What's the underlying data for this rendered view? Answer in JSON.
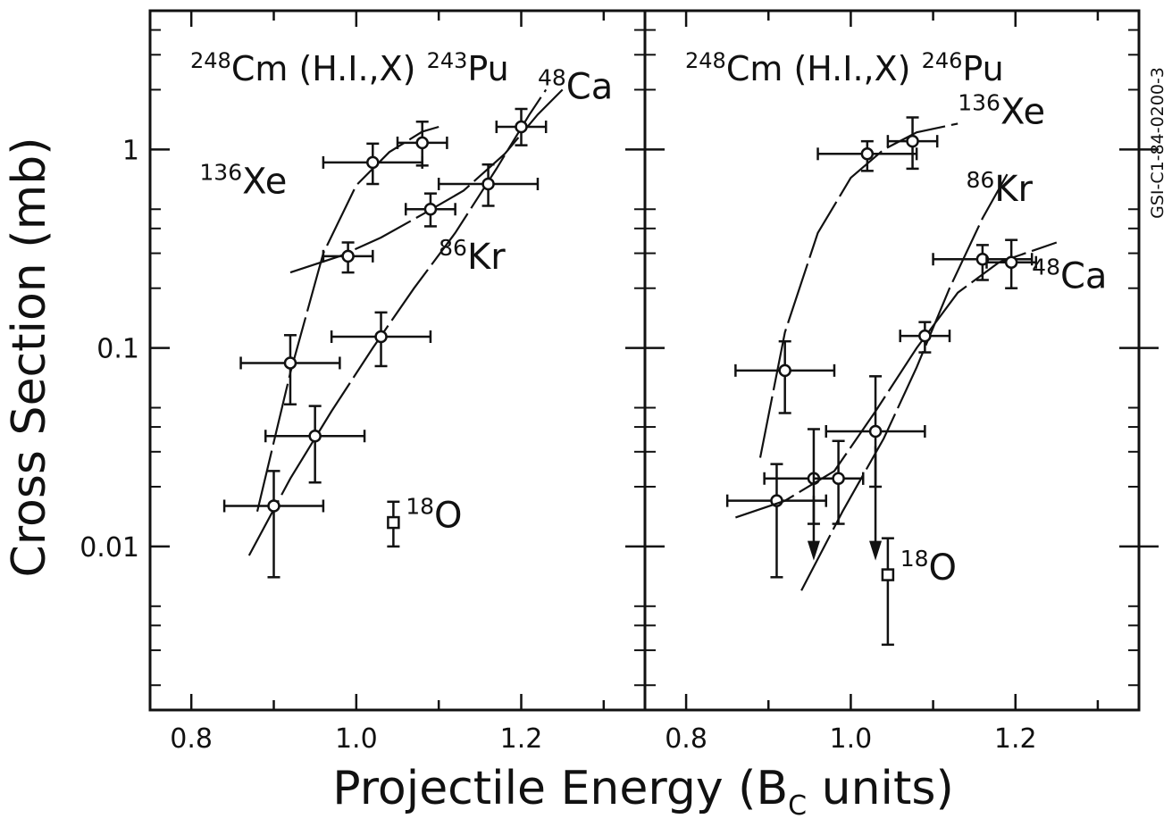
{
  "figure": {
    "ylabel": "Cross Section (mb)",
    "xlabel_main": "Projectile  Energy  (B",
    "xlabel_sub": "C",
    "xlabel_tail": " units)",
    "side_id": "GSI-C1-84-0200-3"
  },
  "chart_data": [
    {
      "type": "scatter",
      "title_parts": {
        "a_mass": "248",
        "a_sym": "Cm",
        "reaction": " (H.I.,X) ",
        "b_mass": "243",
        "b_sym": "Pu"
      },
      "xlabel": "Projectile Energy (B_C units)",
      "ylabel": "Cross Section (mb)",
      "xlim": [
        0.75,
        1.35
      ],
      "ylim": [
        0.0015,
        5
      ],
      "yscale": "log",
      "xticks": [
        "0.8",
        "1.0",
        "1.2"
      ],
      "yticks": [
        "0.01",
        "0.1",
        "1"
      ],
      "series": [
        {
          "name_mass": "136",
          "name_sym": "Xe",
          "label_x": 0.81,
          "label_y": 0.6,
          "points": [
            {
              "x": 0.92,
              "y": 0.084,
              "xerr": [
                0.06,
                0.06
              ],
              "yerr": [
                0.032,
                0.032
              ]
            },
            {
              "x": 1.02,
              "y": 0.86,
              "xerr": [
                0.06,
                0.06
              ],
              "yerr": [
                0.19,
                0.21
              ]
            },
            {
              "x": 1.08,
              "y": 1.08,
              "xerr": [
                0.03,
                0.03
              ],
              "yerr": [
                0.25,
                0.3
              ]
            }
          ],
          "curve": [
            [
              0.88,
              0.015
            ],
            [
              0.92,
              0.075
            ],
            [
              0.96,
              0.3
            ],
            [
              1.0,
              0.66
            ],
            [
              1.04,
              0.97
            ],
            [
              1.08,
              1.23
            ],
            [
              1.1,
              1.3
            ]
          ]
        },
        {
          "name_mass": "86",
          "name_sym": "Kr",
          "label_x": 1.1,
          "label_y": 0.25,
          "points": [
            {
              "x": 0.9,
              "y": 0.016,
              "xerr": [
                0.06,
                0.06
              ],
              "yerr": [
                0.009,
                0.008
              ]
            },
            {
              "x": 0.95,
              "y": 0.036,
              "xerr": [
                0.06,
                0.06
              ],
              "yerr": [
                0.015,
                0.015
              ]
            },
            {
              "x": 1.03,
              "y": 0.114,
              "xerr": [
                0.06,
                0.06
              ],
              "yerr": [
                0.033,
                0.037
              ]
            },
            {
              "x": 1.16,
              "y": 0.67,
              "xerr": [
                0.06,
                0.06
              ],
              "yerr": [
                0.15,
                0.17
              ]
            }
          ],
          "curve": [
            [
              0.87,
              0.009
            ],
            [
              0.92,
              0.022
            ],
            [
              0.97,
              0.048
            ],
            [
              1.02,
              0.1
            ],
            [
              1.07,
              0.2
            ],
            [
              1.12,
              0.38
            ],
            [
              1.17,
              0.8
            ],
            [
              1.21,
              1.5
            ],
            [
              1.23,
              2.0
            ]
          ]
        },
        {
          "name_mass": "48",
          "name_sym": "Ca",
          "label_x": 1.22,
          "label_y": 1.8,
          "points": [
            {
              "x": 0.99,
              "y": 0.29,
              "xerr": [
                0.03,
                0.03
              ],
              "yerr": [
                0.05,
                0.05
              ]
            },
            {
              "x": 1.09,
              "y": 0.5,
              "xerr": [
                0.03,
                0.03
              ],
              "yerr": [
                0.09,
                0.1
              ]
            },
            {
              "x": 1.2,
              "y": 1.3,
              "xerr": [
                0.03,
                0.03
              ],
              "yerr": [
                0.25,
                0.3
              ]
            }
          ],
          "curve": [
            [
              0.92,
              0.24
            ],
            [
              0.98,
              0.29
            ],
            [
              1.03,
              0.36
            ],
            [
              1.08,
              0.47
            ],
            [
              1.13,
              0.62
            ],
            [
              1.18,
              0.95
            ],
            [
              1.22,
              1.5
            ],
            [
              1.25,
              2.0
            ]
          ]
        },
        {
          "name_mass": "18",
          "name_sym": "O",
          "label_x": 1.06,
          "label_y": 0.0125,
          "points": [
            {
              "x": 1.045,
              "y": 0.0132,
              "xerr": [
                0.0,
                0.0
              ],
              "yerr": [
                0.0032,
                0.0036
              ],
              "marker": "square"
            }
          ],
          "curve": []
        }
      ]
    },
    {
      "type": "scatter",
      "title_parts": {
        "a_mass": "248",
        "a_sym": "Cm",
        "reaction": " (H.I.,X) ",
        "b_mass": "246",
        "b_sym": "Pu"
      },
      "xlabel": "Projectile Energy (B_C units)",
      "ylabel": "Cross Section (mb)",
      "xlim": [
        0.75,
        1.35
      ],
      "ylim": [
        0.0015,
        5
      ],
      "yscale": "log",
      "xticks": [
        "0.8",
        "1.0",
        "1.2"
      ],
      "yticks": [
        "0.01",
        "0.1",
        "1"
      ],
      "series": [
        {
          "name_mass": "136",
          "name_sym": "Xe",
          "label_x": 1.13,
          "label_y": 1.35,
          "points": [
            {
              "x": 0.92,
              "y": 0.077,
              "xerr": [
                0.06,
                0.06
              ],
              "yerr": [
                0.03,
                0.031
              ]
            },
            {
              "x": 1.02,
              "y": 0.95,
              "xerr": [
                0.06,
                0.06
              ],
              "yerr": [
                0.17,
                0.15
              ]
            },
            {
              "x": 1.075,
              "y": 1.1,
              "xerr": [
                0.03,
                0.03
              ],
              "yerr": [
                0.3,
                0.35
              ]
            }
          ],
          "curve": [
            [
              0.89,
              0.028
            ],
            [
              0.92,
              0.12
            ],
            [
              0.96,
              0.38
            ],
            [
              1.0,
              0.72
            ],
            [
              1.04,
              1.0
            ],
            [
              1.08,
              1.22
            ],
            [
              1.13,
              1.35
            ]
          ]
        },
        {
          "name_mass": "86",
          "name_sym": "Kr",
          "label_x": 1.14,
          "label_y": 0.55,
          "points": [
            {
              "x": 0.91,
              "y": 0.017,
              "xerr": [
                0.06,
                0.06
              ],
              "yerr": [
                0.01,
                0.009
              ]
            },
            {
              "x": 0.955,
              "y": 0.022,
              "xerr": [
                0.06,
                0.06
              ],
              "yerr": [
                0.009,
                0.017
              ]
            },
            {
              "x": 0.985,
              "y": 0.022,
              "xerr": [
                0.03,
                0.03
              ],
              "yerr": [
                0.009,
                0.012
              ]
            },
            {
              "x": 1.03,
              "y": 0.038,
              "xerr": [
                0.06,
                0.06
              ],
              "yerr": [
                0.018,
                0.034
              ]
            },
            {
              "x": 1.16,
              "y": 0.28,
              "xerr": [
                0.06,
                0.06
              ],
              "yerr": [
                0.06,
                0.05
              ]
            }
          ],
          "curve": [
            [
              0.94,
              0.006
            ],
            [
              0.99,
              0.015
            ],
            [
              1.04,
              0.035
            ],
            [
              1.08,
              0.08
            ],
            [
              1.12,
              0.2
            ],
            [
              1.16,
              0.45
            ],
            [
              1.19,
              0.75
            ]
          ]
        },
        {
          "name_mass": "48",
          "name_sym": "Ca",
          "label_x": 1.22,
          "label_y": 0.2,
          "points": [
            {
              "x": 1.09,
              "y": 0.115,
              "xerr": [
                0.03,
                0.03
              ],
              "yerr": [
                0.02,
                0.02
              ]
            },
            {
              "x": 1.195,
              "y": 0.27,
              "xerr": [
                0.03,
                0.03
              ],
              "yerr": [
                0.07,
                0.08
              ]
            }
          ],
          "curve": [
            [
              0.86,
              0.014
            ],
            [
              0.92,
              0.017
            ],
            [
              0.98,
              0.024
            ],
            [
              1.03,
              0.048
            ],
            [
              1.08,
              0.1
            ],
            [
              1.13,
              0.19
            ],
            [
              1.18,
              0.27
            ],
            [
              1.25,
              0.34
            ]
          ]
        },
        {
          "name_mass": "18",
          "name_sym": "O",
          "label_x": 1.06,
          "label_y": 0.0068,
          "points": [
            {
              "x": 1.045,
              "y": 0.0072,
              "xerr": [
                0.0,
                0.0
              ],
              "yerr": [
                0.004,
                0.0038
              ],
              "marker": "square"
            }
          ],
          "curve": []
        }
      ],
      "upper_limits": [
        {
          "x": 0.955,
          "y": 0.018,
          "to": 0.0085
        },
        {
          "x": 1.03,
          "y": 0.032,
          "to": 0.0085
        }
      ]
    }
  ]
}
